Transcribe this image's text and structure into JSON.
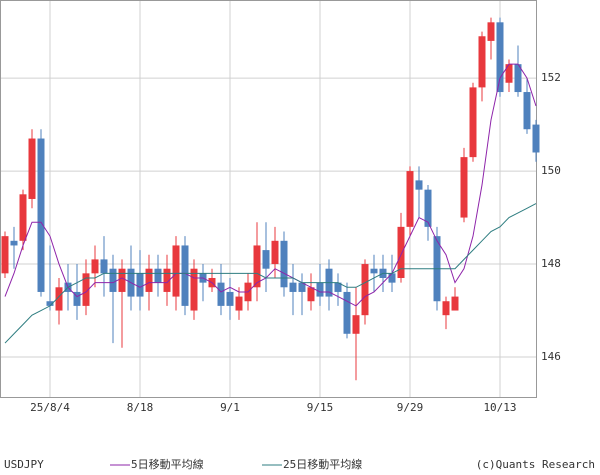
{
  "chart_data": {
    "type": "candlestick",
    "symbol": "USDJPY",
    "credit": "(c)Quants Research",
    "categories": [
      null,
      null,
      null,
      null,
      null,
      "25/8/4",
      null,
      null,
      null,
      null,
      null,
      null,
      null,
      null,
      null,
      "8/18",
      null,
      null,
      null,
      null,
      null,
      null,
      null,
      null,
      null,
      "9/1",
      null,
      null,
      null,
      null,
      null,
      null,
      null,
      null,
      null,
      "9/15",
      null,
      null,
      null,
      null,
      null,
      null,
      null,
      null,
      null,
      "9/29",
      null,
      null,
      null,
      null,
      null,
      null,
      null,
      null,
      null,
      "10/13",
      null,
      null,
      null,
      null
    ],
    "open": [
      147.8,
      148.5,
      148.5,
      149.4,
      150.7,
      147.2,
      147.0,
      147.6,
      147.4,
      147.1,
      147.8,
      148.1,
      147.9,
      147.4,
      147.9,
      147.8,
      147.4,
      147.9,
      147.4,
      147.3,
      148.4,
      147.0,
      147.8,
      147.5,
      147.6,
      147.4,
      147.0,
      147.2,
      147.5,
      148.3,
      148.0,
      148.5,
      147.6,
      147.6,
      147.2,
      147.6,
      147.9,
      147.6,
      147.4,
      146.5,
      146.9,
      147.9,
      147.9,
      147.8,
      147.7,
      148.8,
      149.8,
      149.6,
      148.6,
      146.9,
      147.0,
      149.0,
      150.3,
      151.8,
      152.8,
      153.2,
      151.9,
      152.3,
      151.7,
      151.0
    ],
    "high": [
      148.7,
      148.8,
      149.6,
      150.9,
      150.9,
      148.4,
      147.7,
      148.0,
      148.0,
      148.1,
      148.4,
      148.6,
      148.2,
      148.1,
      148.4,
      148.3,
      148.2,
      148.2,
      148.2,
      148.6,
      148.6,
      148.1,
      148.0,
      147.9,
      148.0,
      147.7,
      147.5,
      147.8,
      148.9,
      148.9,
      148.8,
      148.7,
      148.0,
      147.8,
      147.8,
      148.0,
      148.1,
      147.8,
      147.6,
      147.5,
      148.1,
      148.2,
      148.2,
      148.2,
      149.1,
      150.1,
      150.1,
      149.7,
      148.8,
      147.3,
      147.5,
      150.5,
      151.9,
      153.0,
      153.3,
      153.3,
      152.4,
      152.7,
      152.0,
      151.1
    ],
    "low": [
      147.7,
      147.9,
      148.3,
      149.2,
      147.3,
      147.0,
      146.7,
      147.0,
      146.8,
      146.9,
      147.5,
      147.3,
      146.3,
      146.2,
      147.0,
      147.0,
      147.0,
      147.3,
      147.1,
      147.0,
      146.9,
      146.8,
      147.2,
      147.4,
      146.9,
      146.8,
      146.8,
      147.0,
      147.2,
      147.4,
      147.7,
      147.3,
      146.9,
      146.9,
      147.0,
      147.1,
      147.0,
      147.1,
      146.4,
      145.5,
      146.7,
      147.4,
      147.4,
      147.4,
      147.6,
      148.6,
      149.0,
      148.5,
      147.0,
      146.6,
      147.0,
      148.9,
      150.2,
      151.5,
      152.4,
      151.6,
      151.7,
      151.6,
      150.8,
      150.2
    ],
    "close": [
      148.6,
      148.4,
      149.5,
      150.7,
      147.4,
      147.1,
      147.5,
      147.4,
      147.1,
      147.8,
      148.1,
      147.8,
      147.4,
      147.9,
      147.3,
      147.3,
      147.9,
      147.6,
      147.9,
      148.4,
      147.1,
      147.9,
      147.6,
      147.7,
      147.1,
      147.1,
      147.3,
      147.6,
      148.4,
      147.9,
      148.5,
      147.5,
      147.4,
      147.4,
      147.5,
      147.3,
      147.3,
      147.4,
      146.5,
      146.9,
      148.0,
      147.8,
      147.7,
      147.6,
      148.8,
      150.0,
      149.6,
      148.8,
      147.2,
      147.2,
      147.3,
      150.3,
      151.8,
      152.9,
      153.2,
      151.7,
      152.3,
      151.7,
      150.9,
      150.4
    ],
    "up_color": "#e8383d",
    "down_color": "#4f81bd",
    "series": [
      {
        "name": "5日移動平均線",
        "color": "#8e24aa",
        "values": [
          147.3,
          147.8,
          148.4,
          148.9,
          148.9,
          148.6,
          148.0,
          147.5,
          147.3,
          147.4,
          147.6,
          147.6,
          147.6,
          147.7,
          147.6,
          147.5,
          147.6,
          147.6,
          147.6,
          147.8,
          147.8,
          147.7,
          147.7,
          147.6,
          147.4,
          147.5,
          147.4,
          147.4,
          147.6,
          147.7,
          147.9,
          147.8,
          147.7,
          147.6,
          147.5,
          147.4,
          147.4,
          147.3,
          147.2,
          147.1,
          147.3,
          147.4,
          147.6,
          147.8,
          148.2,
          148.6,
          149.0,
          148.9,
          148.5,
          148.2,
          147.6,
          147.9,
          148.6,
          149.7,
          151.1,
          152.0,
          152.3,
          152.3,
          152.0,
          151.4
        ]
      },
      {
        "name": "25日移動平均線",
        "color": "#2e7d80",
        "values": [
          146.3,
          146.5,
          146.7,
          146.9,
          147.0,
          147.1,
          147.3,
          147.5,
          147.6,
          147.7,
          147.7,
          147.8,
          147.8,
          147.8,
          147.8,
          147.8,
          147.8,
          147.8,
          147.8,
          147.8,
          147.8,
          147.8,
          147.8,
          147.8,
          147.8,
          147.8,
          147.8,
          147.8,
          147.8,
          147.7,
          147.7,
          147.7,
          147.7,
          147.6,
          147.6,
          147.6,
          147.6,
          147.6,
          147.5,
          147.5,
          147.6,
          147.7,
          147.8,
          147.8,
          147.9,
          147.9,
          147.9,
          147.9,
          147.9,
          147.9,
          147.9,
          148.1,
          148.3,
          148.5,
          148.7,
          148.8,
          149.0,
          149.1,
          149.2,
          149.3
        ]
      }
    ],
    "ylim": [
      145.14,
      153.68
    ],
    "yticks": [
      146,
      148,
      150,
      152
    ],
    "grid": true
  }
}
